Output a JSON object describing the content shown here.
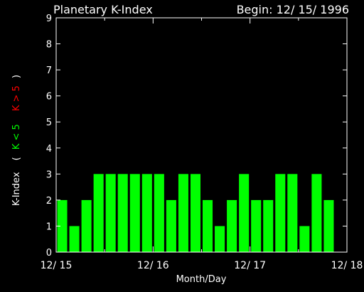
{
  "chart_data": {
    "type": "bar",
    "title": "Planetary K-Index",
    "begin_label": "Begin: 12/ 15/ 1996",
    "xlabel": "Month/Day",
    "ylabel": {
      "main": "K-Index",
      "open_paren": "(",
      "quiet": "K < 5",
      "storm": "K > 5",
      "close_paren": ")"
    },
    "ylim": [
      0,
      9
    ],
    "yticks": [
      "0",
      "1",
      "2",
      "3",
      "4",
      "5",
      "6",
      "7",
      "8",
      "9"
    ],
    "xlim": [
      0,
      24
    ],
    "xticks": [
      {
        "x": 0,
        "label": "12/ 15"
      },
      {
        "x": 8,
        "label": "12/ 16"
      },
      {
        "x": 16,
        "label": "12/ 17"
      },
      {
        "x": 24,
        "label": "12/ 18"
      }
    ],
    "values": [
      2,
      1,
      2,
      3,
      3,
      3,
      3,
      3,
      3,
      2,
      3,
      3,
      2,
      1,
      2,
      3,
      2,
      2,
      3,
      3,
      1,
      3,
      2
    ],
    "colors": {
      "background": "#000000",
      "axes": "#ffffff",
      "bar": "#00ff00",
      "quiet_label": "#00ff00",
      "storm_label": "#ff0000",
      "text": "#ffffff"
    }
  }
}
